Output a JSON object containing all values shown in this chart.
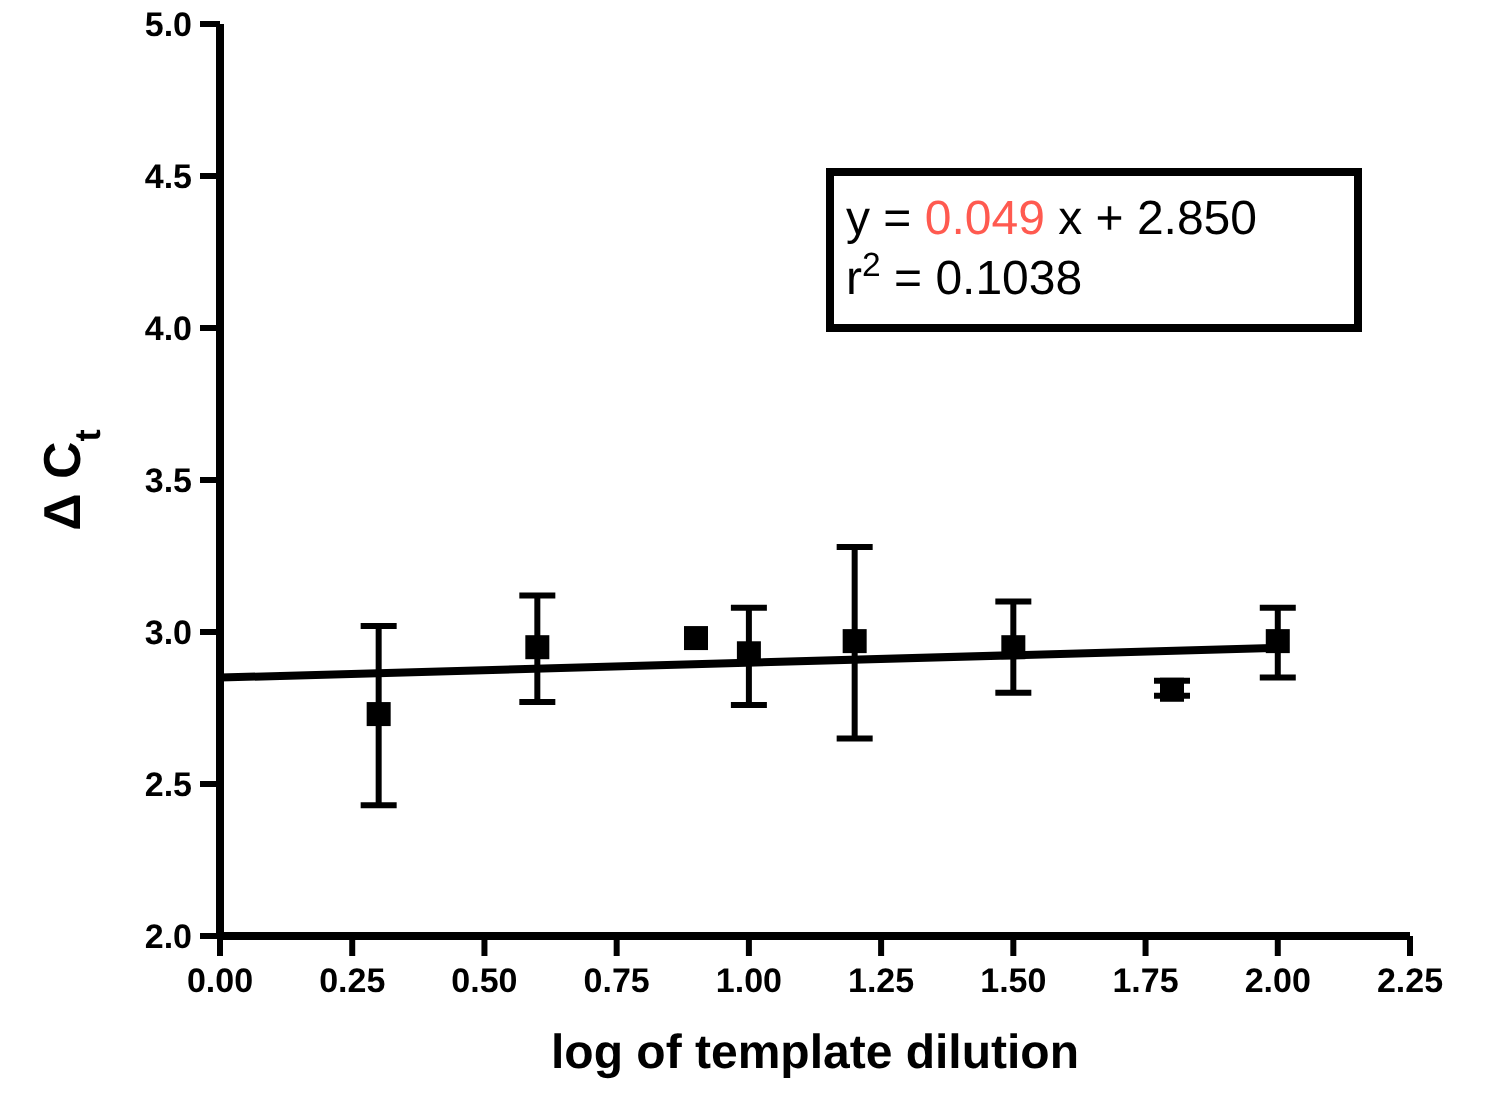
{
  "chart_data": {
    "type": "scatter",
    "xlabel": "log of template dilution",
    "ylabel": "Δ C$_{t}$",
    "annotations": [
      "y = 0.049 x + 2.850",
      "r$^{2}$ = 0.1038"
    ],
    "x": [
      0.3,
      0.6,
      0.9,
      1.0,
      1.2,
      1.5,
      1.8,
      2.0
    ],
    "series": [
      {
        "color": "#000000",
        "marker": "square",
        "values": [
          2.73,
          2.95,
          2.98,
          2.93,
          2.97,
          2.95,
          2.81,
          2.97
        ],
        "errors": [
          [
            2.43,
            3.02
          ],
          [
            2.77,
            3.12
          ],
          null,
          [
            2.76,
            3.08
          ],
          [
            2.65,
            3.28
          ],
          [
            2.8,
            3.1
          ],
          [
            2.79,
            2.84
          ],
          [
            2.85,
            3.08
          ]
        ]
      },
      {
        "type": "line",
        "color": "#000000",
        "x": [
          0,
          2.0
        ],
        "values": [
          2.85,
          2.948
        ],
        "line_style": "solid"
      }
    ],
    "xlim": [
      0,
      2.25
    ],
    "xticks": [
      {
        "value": 0,
        "label": "0.00"
      },
      {
        "value": 0.25,
        "label": "0.25"
      },
      {
        "value": 0.5,
        "label": "0.50"
      },
      {
        "value": 0.75,
        "label": "0.75"
      },
      {
        "value": 1,
        "label": "1.00"
      },
      {
        "value": 1.25,
        "label": "1.25"
      },
      {
        "value": 1.5,
        "label": "1.50"
      },
      {
        "value": 1.75,
        "label": "1.75"
      },
      {
        "value": 2,
        "label": "2.00"
      },
      {
        "value": 2.25,
        "label": "2.25"
      }
    ],
    "ylim": [
      2.0,
      5.0
    ],
    "yticks": [
      {
        "value": 2,
        "label": "2.0"
      },
      {
        "value": 2.5,
        "label": "2.5"
      },
      {
        "value": 3,
        "label": "3.0"
      },
      {
        "value": 3.5,
        "label": "3.5"
      },
      {
        "value": 4,
        "label": "4.0"
      },
      {
        "value": 4.5,
        "label": "4.5"
      },
      {
        "value": 5,
        "label": "5.0"
      }
    ],
    "grid": false
  }
}
